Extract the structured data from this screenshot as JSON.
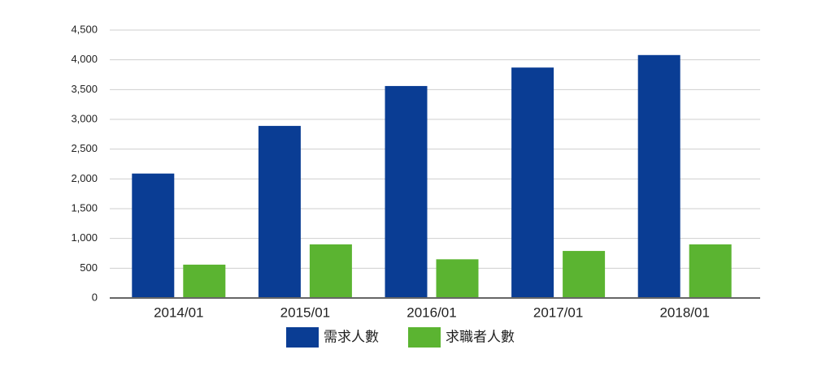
{
  "chart_data": {
    "type": "bar",
    "categories": [
      "2014/01",
      "2015/01",
      "2016/01",
      "2017/01",
      "2018/01"
    ],
    "series": [
      {
        "name": "需求人數",
        "color": "#0a3d94",
        "values": [
          2090,
          2890,
          3560,
          3870,
          4080
        ]
      },
      {
        "name": "求職者人數",
        "color": "#5bb431",
        "values": [
          560,
          900,
          650,
          790,
          900
        ]
      }
    ],
    "ylim": [
      0,
      4500
    ],
    "yticks": [
      0,
      500,
      {
        "value": 1000,
        "label": "1,000"
      },
      {
        "value": 1500,
        "label": "1,500"
      },
      {
        "value": 2000,
        "label": "2,000"
      },
      {
        "value": 2500,
        "label": "2,500"
      },
      {
        "value": 3000,
        "label": "3,000"
      },
      {
        "value": 3500,
        "label": "3,500"
      },
      {
        "value": 4000,
        "label": "4,000"
      },
      {
        "value": 4500,
        "label": "4,500"
      }
    ],
    "grid": true,
    "legend": "bottom"
  }
}
